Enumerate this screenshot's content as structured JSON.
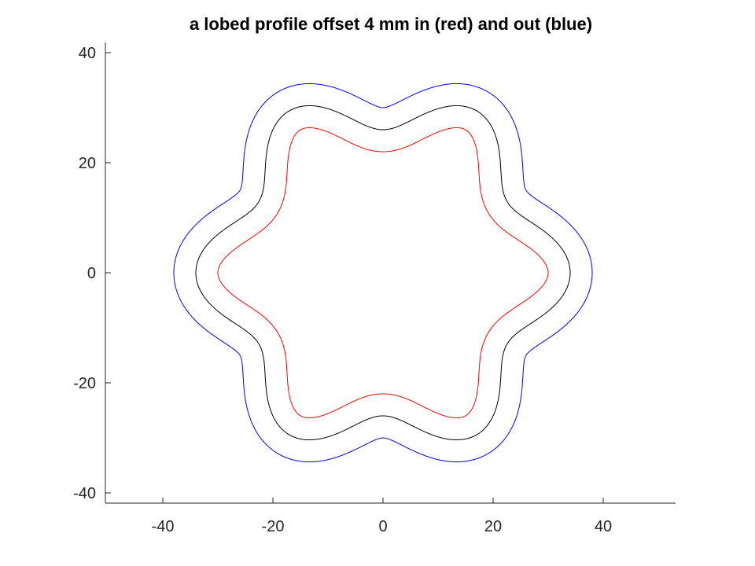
{
  "chart_data": {
    "type": "line",
    "title": "a lobed profile offset 4 mm in (red) and out (blue)",
    "xlabel": "",
    "ylabel": "",
    "xlim": [
      -50,
      53
    ],
    "ylim": [
      -42,
      42
    ],
    "xticks": [
      -40,
      -20,
      0,
      20,
      40
    ],
    "yticks": [
      -40,
      -20,
      0,
      20,
      40
    ],
    "xtick_labels": [
      "-40",
      "-20",
      "0",
      "20",
      "40"
    ],
    "ytick_labels": [
      "-40",
      "-20",
      "0",
      "20",
      "40"
    ],
    "grid": false,
    "aspect": "equal",
    "box": "left-bottom",
    "profile": {
      "lobes": 6,
      "mean_radius_mm": 30,
      "lobe_amplitude_mm": 4,
      "offset_mm": 4
    },
    "series": [
      {
        "role": "profile",
        "color": "#000000",
        "offset_mm": 0
      },
      {
        "role": "inward offset",
        "color": "#ff0000",
        "offset_mm": -4
      },
      {
        "role": "outward offset",
        "color": "#0000ff",
        "offset_mm": 4
      }
    ]
  }
}
